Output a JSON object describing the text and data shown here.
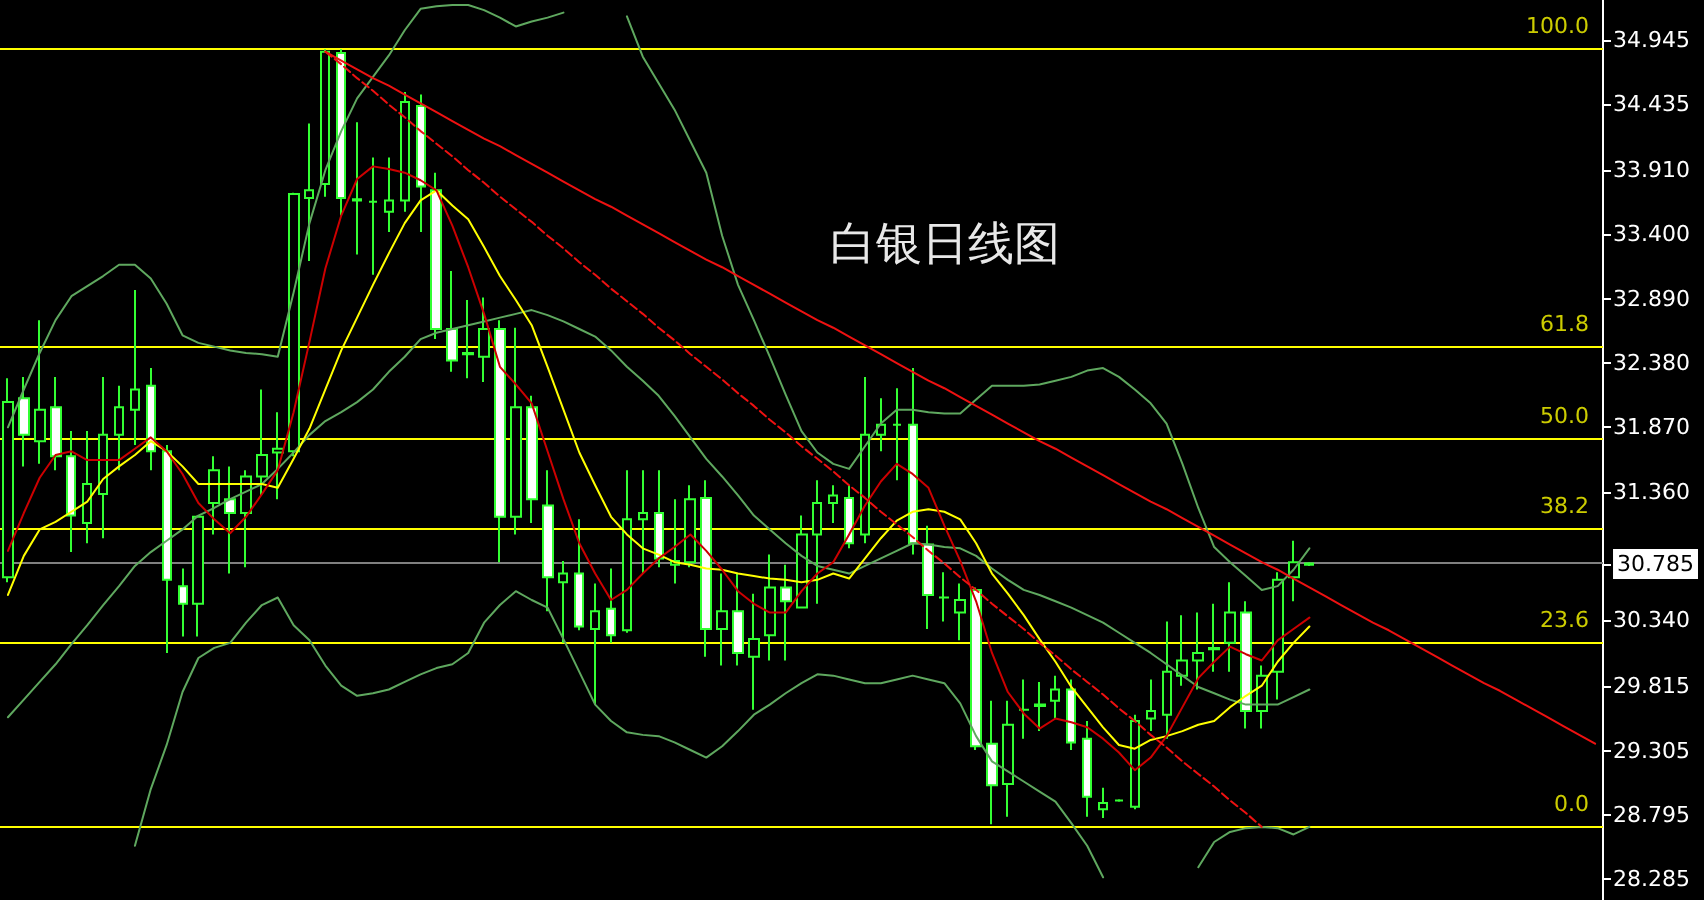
{
  "chart_data": {
    "type": "candlestick",
    "title": "白银日线图",
    "categories": [
      null,
      null,
      null,
      null,
      null,
      null,
      null,
      null,
      null,
      null,
      null,
      null,
      null,
      null,
      null,
      null,
      null,
      null,
      null,
      null,
      null,
      null,
      null,
      null,
      null,
      null,
      null,
      null,
      null,
      null,
      null,
      null,
      null,
      null,
      null,
      null,
      null,
      null,
      null,
      null,
      null,
      null,
      null,
      null,
      null,
      null,
      null,
      null,
      null,
      null,
      null,
      null,
      null,
      null,
      null,
      null,
      null,
      null,
      null,
      null,
      null,
      null,
      null,
      null,
      null,
      null,
      null,
      null,
      null,
      null,
      null,
      null,
      null,
      null,
      null,
      null,
      null,
      null,
      null,
      null,
      null,
      null,
      null,
      null,
      null,
      null,
      null,
      null,
      null,
      null,
      null,
      null,
      null,
      null,
      null,
      null,
      null,
      null,
      null,
      null,
      null
    ],
    "color": "#33ff33",
    "ohlc": [
      [
        30.68,
        32.26,
        30.64,
        32.07
      ],
      [
        32.1,
        32.27,
        31.56,
        31.81
      ],
      [
        31.76,
        32.72,
        31.58,
        32.01
      ],
      [
        32.03,
        32.27,
        31.53,
        31.64
      ],
      [
        31.64,
        31.84,
        30.88,
        31.17
      ],
      [
        31.11,
        31.84,
        30.95,
        31.42
      ],
      [
        31.34,
        32.27,
        30.99,
        31.81
      ],
      [
        31.81,
        32.2,
        31.53,
        32.03
      ],
      [
        32.01,
        32.96,
        31.73,
        32.17
      ],
      [
        32.2,
        32.34,
        31.53,
        31.68
      ],
      [
        31.68,
        31.73,
        30.08,
        30.66
      ],
      [
        30.61,
        30.75,
        30.21,
        30.47
      ],
      [
        30.47,
        31.17,
        30.21,
        31.16
      ],
      [
        31.27,
        31.64,
        31.02,
        31.53
      ],
      [
        31.3,
        31.56,
        30.71,
        31.19
      ],
      [
        31.19,
        31.53,
        30.76,
        31.48
      ],
      [
        31.48,
        32.17,
        31.33,
        31.65
      ],
      [
        31.67,
        31.99,
        31.3,
        31.7
      ],
      [
        31.68,
        33.73,
        31.64,
        33.72
      ],
      [
        33.69,
        34.28,
        33.19,
        33.75
      ],
      [
        33.8,
        34.87,
        33.7,
        34.85
      ],
      [
        34.84,
        34.87,
        33.55,
        33.69
      ],
      [
        33.68,
        34.29,
        33.24,
        33.67
      ],
      [
        33.66,
        34.01,
        33.08,
        33.66
      ],
      [
        33.58,
        34.01,
        33.42,
        33.67
      ],
      [
        33.67,
        34.53,
        33.58,
        34.45
      ],
      [
        34.42,
        34.51,
        33.42,
        33.78
      ],
      [
        33.75,
        33.89,
        32.57,
        32.65
      ],
      [
        32.65,
        33.11,
        32.31,
        32.4
      ],
      [
        32.46,
        32.88,
        32.26,
        32.45
      ],
      [
        32.43,
        32.9,
        32.23,
        32.65
      ],
      [
        32.65,
        32.72,
        30.8,
        31.16
      ],
      [
        31.16,
        32.66,
        31.02,
        32.03
      ],
      [
        32.03,
        32.12,
        31.11,
        31.3
      ],
      [
        31.25,
        31.53,
        30.41,
        30.68
      ],
      [
        30.64,
        30.81,
        30.16,
        30.71
      ],
      [
        30.71,
        31.14,
        30.26,
        30.29
      ],
      [
        30.27,
        30.63,
        29.67,
        30.41
      ],
      [
        30.43,
        30.75,
        30.16,
        30.22
      ],
      [
        30.26,
        31.53,
        30.24,
        31.14
      ],
      [
        31.14,
        31.53,
        30.71,
        31.19
      ],
      [
        31.19,
        31.53,
        30.76,
        30.83
      ],
      [
        30.78,
        31.3,
        30.63,
        30.81
      ],
      [
        30.8,
        31.41,
        30.76,
        31.3
      ],
      [
        31.31,
        31.45,
        30.05,
        30.27
      ],
      [
        30.27,
        30.71,
        29.98,
        30.41
      ],
      [
        30.41,
        30.71,
        29.98,
        30.08
      ],
      [
        30.05,
        30.55,
        29.63,
        30.19
      ],
      [
        30.22,
        30.86,
        30.02,
        30.6
      ],
      [
        30.6,
        30.78,
        30.02,
        30.49
      ],
      [
        30.44,
        31.17,
        30.44,
        31.02
      ],
      [
        31.02,
        31.45,
        30.47,
        31.27
      ],
      [
        31.27,
        31.41,
        31.11,
        31.33
      ],
      [
        31.31,
        31.41,
        30.91,
        30.95
      ],
      [
        31.02,
        32.27,
        30.95,
        31.81
      ],
      [
        31.81,
        32.1,
        31.68,
        31.89
      ],
      [
        31.89,
        32.18,
        31.45,
        31.89
      ],
      [
        31.89,
        32.34,
        30.86,
        30.95
      ],
      [
        30.94,
        31.09,
        30.27,
        30.54
      ],
      [
        30.52,
        30.72,
        30.33,
        30.52
      ],
      [
        30.4,
        30.63,
        30.18,
        30.5
      ],
      [
        30.58,
        30.6,
        29.31,
        29.34
      ],
      [
        29.36,
        29.7,
        28.72,
        29.03
      ],
      [
        29.04,
        29.7,
        28.78,
        29.51
      ],
      [
        29.63,
        29.87,
        29.4,
        29.63
      ],
      [
        29.66,
        29.85,
        29.46,
        29.67
      ],
      [
        29.7,
        29.9,
        29.56,
        29.79
      ],
      [
        29.79,
        29.87,
        29.31,
        29.37
      ],
      [
        29.4,
        29.54,
        28.78,
        28.94
      ],
      [
        28.84,
        29.01,
        28.77,
        28.89
      ],
      [
        28.91,
        28.92,
        28.9,
        28.91
      ],
      [
        28.86,
        29.59,
        28.84,
        29.54
      ],
      [
        29.56,
        29.87,
        29.46,
        29.62
      ],
      [
        29.59,
        30.33,
        29.4,
        29.93
      ],
      [
        29.9,
        30.38,
        29.82,
        30.02
      ],
      [
        30.02,
        30.4,
        29.79,
        30.08
      ],
      [
        30.11,
        30.47,
        29.93,
        30.12
      ],
      [
        30.16,
        30.64,
        29.93,
        30.4
      ],
      [
        30.4,
        30.49,
        29.48,
        29.62
      ],
      [
        29.62,
        29.98,
        29.48,
        29.9
      ],
      [
        29.93,
        30.72,
        29.71,
        30.66
      ],
      [
        30.68,
        30.97,
        30.49,
        30.8
      ],
      [
        30.78,
        30.8,
        30.77,
        30.79
      ],
      null,
      null,
      null,
      null,
      null,
      null,
      null,
      null,
      null,
      null,
      null,
      null,
      null,
      null,
      null,
      null,
      null,
      null
    ],
    "series": [
      {
        "type": "line",
        "color": "#5fa85f",
        "values": [
          31.87,
          32.17,
          32.46,
          32.72,
          32.91,
          32.99,
          33.07,
          33.16,
          33.16,
          33.05,
          32.85,
          32.6,
          32.54,
          32.51,
          32.48,
          32.46,
          32.45,
          32.43,
          32.94,
          33.49,
          33.91,
          34.22,
          34.48,
          34.65,
          34.82,
          35.02,
          35.19,
          35.21,
          35.22,
          35.22,
          35.18,
          35.12,
          35.05,
          35.09,
          35.12,
          35.16,
          null,
          null,
          null,
          35.13,
          34.81,
          34.6,
          34.39,
          34.14,
          33.89,
          33.39,
          33.0,
          32.72,
          32.43,
          32.13,
          31.84,
          31.67,
          31.58,
          31.54,
          31.72,
          31.9,
          32.01,
          32.01,
          31.99,
          31.98,
          31.98,
          32.09,
          32.2,
          32.2,
          32.2,
          32.21,
          32.24,
          32.27,
          32.32,
          32.34,
          32.27,
          32.17,
          32.06,
          31.9,
          31.58,
          31.23,
          30.92,
          30.8,
          30.69,
          30.58,
          30.61,
          30.74,
          30.91,
          null,
          null,
          null,
          null,
          null,
          null,
          null,
          null,
          null,
          null,
          null,
          null,
          null,
          null,
          null,
          null,
          null,
          null
        ]
      },
      {
        "type": "line",
        "color": "#5fa85f",
        "values": [
          29.57,
          29.71,
          29.85,
          29.99,
          30.15,
          30.3,
          30.46,
          30.61,
          30.77,
          30.88,
          30.97,
          31.06,
          31.17,
          31.23,
          31.3,
          31.36,
          31.42,
          31.54,
          31.67,
          31.81,
          31.92,
          31.99,
          32.07,
          32.17,
          32.31,
          32.43,
          32.57,
          32.62,
          32.65,
          32.68,
          32.71,
          32.74,
          32.77,
          32.8,
          32.76,
          32.71,
          32.65,
          32.59,
          32.48,
          32.35,
          32.24,
          32.12,
          31.96,
          31.79,
          31.62,
          31.48,
          31.33,
          31.17,
          31.06,
          30.95,
          30.85,
          30.77,
          30.74,
          30.71,
          30.77,
          30.83,
          30.89,
          30.95,
          30.94,
          30.92,
          30.91,
          30.85,
          30.75,
          30.66,
          30.58,
          30.54,
          30.49,
          30.44,
          30.38,
          30.32,
          30.24,
          30.16,
          30.08,
          29.99,
          29.9,
          29.81,
          29.76,
          29.71,
          29.67,
          29.67,
          29.67,
          29.73,
          29.79,
          null,
          null,
          null,
          null,
          null,
          null,
          null,
          null,
          null,
          null,
          null,
          null,
          null,
          null,
          null,
          null,
          null,
          null
        ]
      },
      {
        "type": "line",
        "color": "#5fa85f",
        "values": [
          null,
          null,
          null,
          null,
          null,
          null,
          null,
          null,
          28.55,
          29.0,
          29.35,
          29.77,
          30.04,
          30.12,
          30.16,
          30.32,
          30.46,
          30.52,
          30.3,
          30.18,
          29.98,
          29.82,
          29.74,
          29.76,
          29.79,
          29.85,
          29.91,
          29.96,
          29.99,
          30.08,
          30.32,
          30.46,
          30.57,
          30.5,
          30.44,
          30.19,
          29.93,
          29.67,
          29.54,
          29.45,
          29.43,
          29.42,
          29.37,
          29.31,
          29.25,
          29.34,
          29.46,
          29.59,
          29.67,
          29.76,
          29.84,
          29.91,
          29.9,
          29.87,
          29.84,
          29.84,
          29.87,
          29.9,
          29.87,
          29.84,
          29.68,
          29.42,
          29.22,
          29.14,
          29.06,
          28.98,
          28.9,
          28.73,
          28.55,
          28.3,
          null,
          null,
          null,
          null,
          null,
          28.38,
          28.58,
          28.66,
          28.69,
          28.7,
          28.69,
          28.64,
          28.7,
          null,
          null,
          null,
          null,
          null,
          null,
          null,
          null,
          null,
          null,
          null,
          null,
          null,
          null,
          null,
          null,
          null,
          null
        ]
      },
      {
        "type": "line",
        "color": "#ffff00",
        "values": [
          30.54,
          30.85,
          31.06,
          31.12,
          31.2,
          31.28,
          31.46,
          31.56,
          31.65,
          31.76,
          31.68,
          31.56,
          31.42,
          31.42,
          31.42,
          31.42,
          31.42,
          31.39,
          31.62,
          31.86,
          32.17,
          32.48,
          32.74,
          33.0,
          33.25,
          33.49,
          33.67,
          33.75,
          33.63,
          33.52,
          33.3,
          33.07,
          32.88,
          32.68,
          32.35,
          32.01,
          31.67,
          31.41,
          31.16,
          31.02,
          30.91,
          30.86,
          30.8,
          30.78,
          30.75,
          30.74,
          30.71,
          30.69,
          30.67,
          30.66,
          30.64,
          30.66,
          30.71,
          30.67,
          30.83,
          30.99,
          31.13,
          31.2,
          31.22,
          31.2,
          31.14,
          30.95,
          30.71,
          30.55,
          30.38,
          30.19,
          30.01,
          29.81,
          29.65,
          29.49,
          29.35,
          29.32,
          29.39,
          29.42,
          29.46,
          29.51,
          29.54,
          29.65,
          29.74,
          29.82,
          30.01,
          30.16,
          30.29,
          null,
          null,
          null,
          null,
          null,
          null,
          null,
          null,
          null,
          null,
          null,
          null,
          null,
          null,
          null,
          null,
          null,
          null
        ]
      },
      {
        "type": "line",
        "color": "#cc0000",
        "values": [
          30.89,
          31.19,
          31.47,
          31.65,
          31.68,
          31.61,
          31.61,
          31.61,
          31.7,
          31.79,
          31.68,
          31.5,
          31.27,
          31.14,
          31.03,
          31.16,
          31.34,
          31.53,
          31.99,
          32.55,
          33.13,
          33.55,
          33.84,
          33.94,
          33.92,
          33.89,
          33.83,
          33.75,
          33.47,
          33.14,
          32.77,
          32.35,
          32.21,
          32.06,
          31.68,
          31.3,
          30.95,
          30.71,
          30.5,
          30.58,
          30.71,
          30.83,
          30.92,
          31.02,
          30.89,
          30.74,
          30.57,
          30.47,
          30.4,
          30.4,
          30.57,
          30.71,
          30.8,
          31.02,
          31.25,
          31.44,
          31.58,
          31.5,
          31.39,
          31.09,
          30.81,
          30.49,
          30.08,
          29.77,
          29.6,
          29.48,
          29.56,
          29.53,
          29.49,
          29.4,
          29.29,
          29.15,
          29.25,
          29.42,
          29.65,
          29.88,
          30.01,
          30.13,
          30.07,
          30.02,
          30.18,
          30.27,
          30.36,
          null,
          null,
          null,
          null,
          null,
          null,
          null,
          null,
          null,
          null,
          null,
          null,
          null,
          null,
          null,
          null,
          null,
          null
        ]
      },
      {
        "type": "line",
        "color": "#ee1111",
        "values": [
          null,
          null,
          null,
          null,
          null,
          null,
          null,
          null,
          null,
          null,
          null,
          null,
          null,
          null,
          null,
          null,
          null,
          null,
          null,
          null,
          34.85,
          34.78,
          34.71,
          34.64,
          34.58,
          34.51,
          34.44,
          34.37,
          34.3,
          34.23,
          34.16,
          34.1,
          34.03,
          33.96,
          33.89,
          33.82,
          33.75,
          33.68,
          33.62,
          33.55,
          33.48,
          33.41,
          33.34,
          33.27,
          33.2,
          33.14,
          33.07,
          33.0,
          32.93,
          32.86,
          32.79,
          32.72,
          32.66,
          32.59,
          32.52,
          32.45,
          32.38,
          32.31,
          32.24,
          32.18,
          32.11,
          32.04,
          31.97,
          31.9,
          31.83,
          31.76,
          31.7,
          31.63,
          31.56,
          31.49,
          31.42,
          31.35,
          31.28,
          31.22,
          31.15,
          31.08,
          31.01,
          30.94,
          30.87,
          30.8,
          30.74,
          30.67,
          30.6,
          30.53,
          30.46,
          30.39,
          30.32,
          30.26,
          30.19,
          30.12,
          30.05,
          29.98,
          29.91,
          29.84,
          29.78,
          29.71,
          29.64,
          29.57,
          29.5,
          29.43,
          29.36
        ]
      },
      {
        "type": "line",
        "color": "#ee1111",
        "line_style": "dashed",
        "values": [
          null,
          null,
          null,
          null,
          null,
          null,
          null,
          null,
          null,
          null,
          null,
          null,
          null,
          null,
          null,
          null,
          null,
          null,
          null,
          null,
          34.85,
          34.75,
          34.64,
          34.54,
          34.43,
          34.33,
          34.22,
          34.12,
          34.02,
          33.91,
          33.81,
          33.7,
          33.6,
          33.5,
          33.39,
          33.29,
          33.18,
          33.08,
          32.97,
          32.87,
          32.77,
          32.66,
          32.56,
          32.45,
          32.35,
          32.25,
          32.14,
          32.04,
          31.93,
          31.83,
          31.72,
          31.62,
          31.52,
          31.41,
          31.31,
          31.2,
          31.1,
          31.0,
          30.89,
          30.79,
          30.68,
          30.58,
          30.47,
          30.37,
          30.27,
          30.16,
          30.06,
          29.95,
          29.85,
          29.75,
          29.64,
          29.54,
          29.43,
          29.33,
          29.22,
          29.12,
          29.02,
          28.91,
          28.81,
          28.7,
          null,
          null,
          null,
          null,
          null,
          null,
          null,
          null,
          null,
          null,
          null,
          null,
          null,
          null,
          null,
          null,
          null,
          null,
          null,
          null,
          null
        ]
      }
    ],
    "ylim": [
      28.12,
      35.26
    ],
    "yticks": [
      {
        "value": 34.945,
        "label": "34.945"
      },
      {
        "value": 34.435,
        "label": "34.435"
      },
      {
        "value": 33.91,
        "label": "33.910"
      },
      {
        "value": 33.4,
        "label": "33.400"
      },
      {
        "value": 32.89,
        "label": "32.890"
      },
      {
        "value": 32.38,
        "label": "32.380"
      },
      {
        "value": 31.87,
        "label": "31.870"
      },
      {
        "value": 31.36,
        "label": "31.360"
      },
      {
        "value": 30.785,
        "label": "30.785"
      },
      {
        "value": 30.34,
        "label": "30.340"
      },
      {
        "value": 29.815,
        "label": "29.815"
      },
      {
        "value": 29.305,
        "label": "29.305"
      },
      {
        "value": 28.795,
        "label": "28.795"
      },
      {
        "value": 28.285,
        "label": "28.285"
      }
    ],
    "ref_lines": [
      {
        "axis": "y",
        "value": 34.87,
        "color": "#ffff00"
      },
      {
        "axis": "y",
        "value": 32.51,
        "color": "#ffff00"
      },
      {
        "axis": "y",
        "value": 31.78,
        "color": "#ffff00"
      },
      {
        "axis": "y",
        "value": 31.06,
        "color": "#ffff00"
      },
      {
        "axis": "y",
        "value": 30.16,
        "color": "#ffff00"
      },
      {
        "axis": "y",
        "value": 28.7,
        "color": "#ffff00"
      },
      {
        "axis": "y",
        "value": 30.785,
        "color": "#808080"
      }
    ],
    "annotations": [
      {
        "text": "100.0",
        "y": 34.87
      },
      {
        "text": "61.8",
        "y": 32.51
      },
      {
        "text": "50.0",
        "y": 31.78
      },
      {
        "text": "38.2",
        "y": 31.06
      },
      {
        "text": "23.6",
        "y": 30.16
      },
      {
        "text": "0.0",
        "y": 28.7
      }
    ],
    "tick_labels": "y",
    "grid": false,
    "marker": "none",
    "line_style": "solid"
  }
}
